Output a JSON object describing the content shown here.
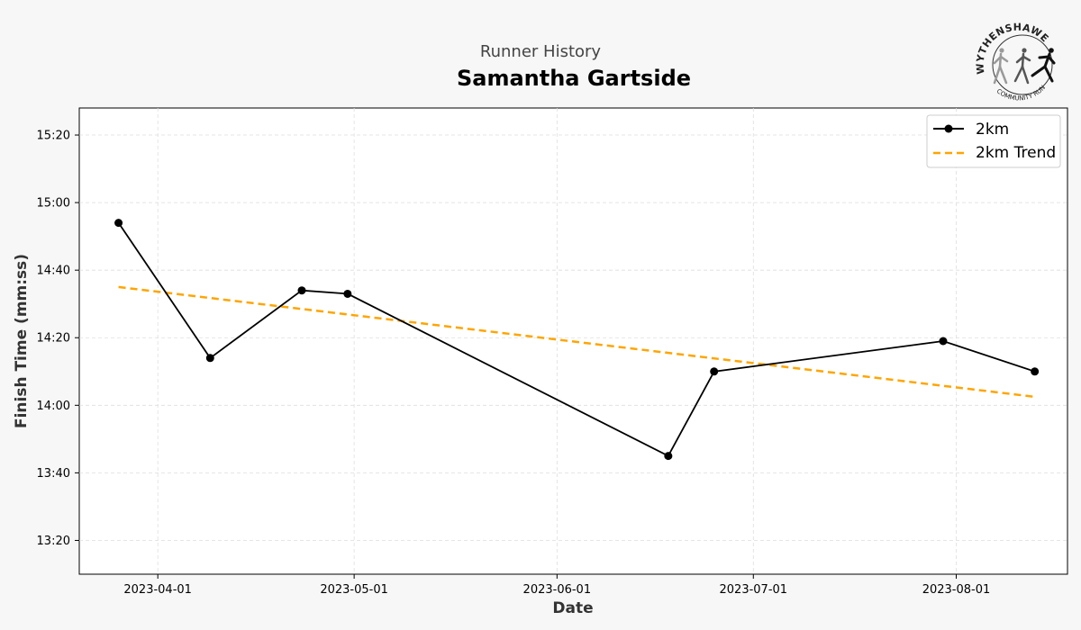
{
  "page": {
    "subtitle": "Runner History",
    "title": "Samantha Gartside"
  },
  "logo": {
    "top_text": "WYTHENSHAWE",
    "bottom_text": "COMMUNITY RUN"
  },
  "colors": {
    "background": "#f7f7f7",
    "plot_background": "#ffffff",
    "series_line": "#000000",
    "trend_line": "#ffa500",
    "grid": "#dddddd"
  },
  "chart_data": {
    "type": "line",
    "title": "Samantha Gartside",
    "subtitle": "Runner History",
    "xlabel": "Date",
    "ylabel": "Finish Time (mm:ss)",
    "x_type": "date",
    "xlim": [
      "2023-03-20",
      "2023-08-18"
    ],
    "ylim": [
      "13:10",
      "15:28"
    ],
    "x_ticks": [
      "2023-04-01",
      "2023-05-01",
      "2023-06-01",
      "2023-07-01",
      "2023-08-01"
    ],
    "y_ticks": [
      "13:20",
      "13:40",
      "14:00",
      "14:20",
      "14:40",
      "15:00",
      "15:20"
    ],
    "grid": true,
    "legend_position": "top-right",
    "series": [
      {
        "name": "2km",
        "style": "solid-with-markers",
        "color": "#000000",
        "points": [
          {
            "x": "2023-03-26",
            "y": "14:54"
          },
          {
            "x": "2023-04-09",
            "y": "14:14"
          },
          {
            "x": "2023-04-23",
            "y": "14:34"
          },
          {
            "x": "2023-04-30",
            "y": "14:33"
          },
          {
            "x": "2023-06-18",
            "y": "13:45"
          },
          {
            "x": "2023-06-25",
            "y": "14:10"
          },
          {
            "x": "2023-07-30",
            "y": "14:19"
          },
          {
            "x": "2023-08-13",
            "y": "14:10"
          }
        ]
      },
      {
        "name": "2km Trend",
        "style": "dashed",
        "color": "#ffa500",
        "points": [
          {
            "x": "2023-03-26",
            "y": "14:35"
          },
          {
            "x": "2023-08-13",
            "y": "14:02.5"
          }
        ]
      }
    ]
  }
}
